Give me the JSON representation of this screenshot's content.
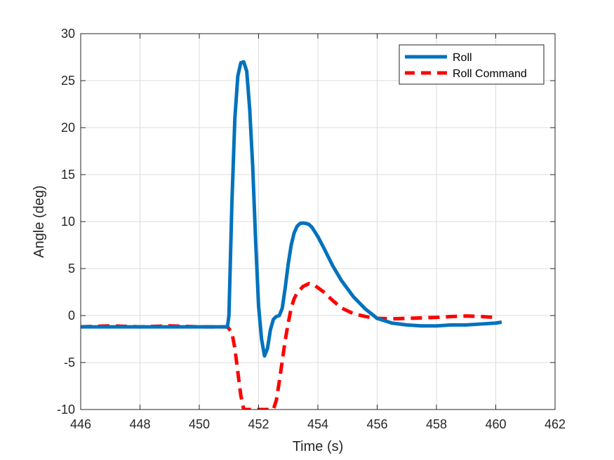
{
  "chart_data": {
    "type": "line",
    "title": "",
    "xlabel": "Time (s)",
    "ylabel": "Angle (deg)",
    "xlim": [
      446,
      462
    ],
    "ylim": [
      -10,
      30
    ],
    "xticks": [
      446,
      448,
      450,
      452,
      454,
      456,
      458,
      460,
      462
    ],
    "yticks": [
      -10,
      -5,
      0,
      5,
      10,
      15,
      20,
      25,
      30
    ],
    "xtick_labels": [
      "446",
      "448",
      "450",
      "452",
      "454",
      "456",
      "458",
      "460",
      "462"
    ],
    "ytick_labels": [
      "-10",
      "-5",
      "0",
      "5",
      "10",
      "15",
      "20",
      "25",
      "30"
    ],
    "grid": true,
    "legend_position": "top-right",
    "series": [
      {
        "name": "Roll",
        "color": "#0072BD",
        "style": "solid",
        "x": [
          446.0,
          447.0,
          448.0,
          449.0,
          450.0,
          450.5,
          450.95,
          451.0,
          451.1,
          451.2,
          451.3,
          451.4,
          451.5,
          451.6,
          451.7,
          451.8,
          451.9,
          452.0,
          452.1,
          452.2,
          452.3,
          452.4,
          452.5,
          452.6,
          452.7,
          452.8,
          452.9,
          453.0,
          453.1,
          453.2,
          453.3,
          453.4,
          453.5,
          453.6,
          453.7,
          453.8,
          454.0,
          454.2,
          454.5,
          454.8,
          455.2,
          455.6,
          456.0,
          456.5,
          457.0,
          457.5,
          458.0,
          458.5,
          459.0,
          459.5,
          460.0,
          460.2
        ],
        "y": [
          -1.2,
          -1.2,
          -1.2,
          -1.2,
          -1.2,
          -1.2,
          -1.2,
          0.0,
          12.0,
          21.0,
          25.5,
          26.9,
          27.0,
          26.0,
          22.0,
          16.0,
          8.0,
          1.0,
          -2.5,
          -4.3,
          -3.5,
          -1.5,
          -0.4,
          -0.1,
          0.0,
          0.8,
          3.0,
          5.5,
          7.5,
          8.8,
          9.5,
          9.8,
          9.85,
          9.8,
          9.7,
          9.4,
          8.4,
          7.2,
          5.3,
          3.7,
          2.0,
          0.7,
          -0.3,
          -0.8,
          -1.0,
          -1.1,
          -1.1,
          -1.0,
          -1.0,
          -0.9,
          -0.8,
          -0.7
        ]
      },
      {
        "name": "Roll Command",
        "color": "#FF0000",
        "style": "dashed",
        "x": [
          446.0,
          447.0,
          448.0,
          449.0,
          450.0,
          450.5,
          450.95,
          451.1,
          451.2,
          451.3,
          451.4,
          451.5,
          451.6,
          451.7,
          452.0,
          452.4,
          452.5,
          452.6,
          452.7,
          452.8,
          452.9,
          453.0,
          453.1,
          453.2,
          453.3,
          453.5,
          453.7,
          453.9,
          454.2,
          454.5,
          454.8,
          455.2,
          455.6,
          456.0,
          456.5,
          457.0,
          457.5,
          458.0,
          458.5,
          459.0,
          459.5,
          460.0
        ],
        "y": [
          -1.2,
          -1.1,
          -1.2,
          -1.1,
          -1.2,
          -1.2,
          -1.2,
          -1.8,
          -3.5,
          -6.0,
          -8.5,
          -10.0,
          -10.0,
          -10.0,
          -10.0,
          -10.0,
          -10.0,
          -9.0,
          -7.0,
          -4.8,
          -2.6,
          -0.8,
          0.8,
          1.8,
          2.4,
          3.1,
          3.4,
          3.2,
          2.5,
          1.6,
          0.8,
          0.2,
          -0.1,
          -0.3,
          -0.35,
          -0.3,
          -0.25,
          -0.2,
          -0.1,
          -0.05,
          -0.1,
          -0.2
        ]
      }
    ]
  }
}
